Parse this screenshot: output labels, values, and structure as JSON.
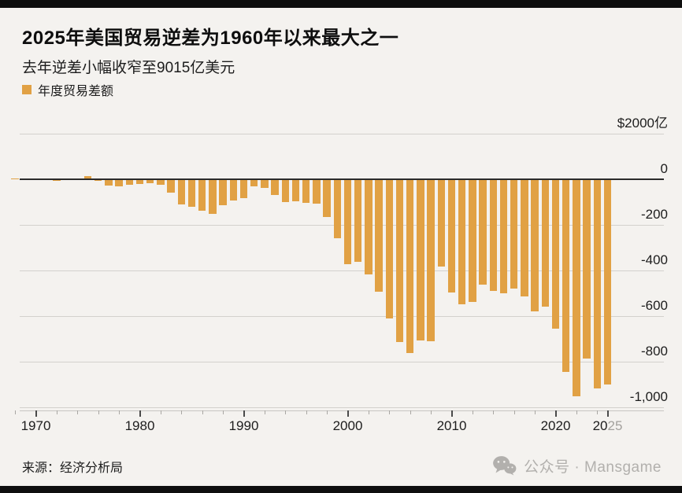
{
  "header": {
    "title": "2025年美国贸易逆差为1960年以来最大之一",
    "subtitle": "去年逆差小幅收窄至9015亿美元"
  },
  "legend": {
    "label": "年度贸易差额"
  },
  "footer": {
    "source": "来源：经济分析局",
    "watermark_icon": "wechat-icon",
    "watermark_text": "公众号 · Mansgame"
  },
  "colors": {
    "bar": "#E1A144",
    "background": "#F4F2EF",
    "grid": "#D3D1CD",
    "zero_line": "#2B2B2B",
    "axis_line": "#C8C6C2",
    "major_tick": "#4A4A4A",
    "minor_tick": "#A9A7A3",
    "text_dark": "#1D1D1D",
    "text_gray": "#A3A19D",
    "watermark": "#B2B0AD",
    "frame": "#0E0E0E"
  },
  "chart_data": {
    "type": "bar",
    "title": "2025年美国贸易逆差为1960年以来最大之一",
    "subtitle": "去年逆差小幅收窄至9015亿美元",
    "series_name": "年度贸易差额",
    "y_axis_top_label": "$2000亿",
    "ylim": [
      200,
      -1000
    ],
    "grid": "horizontal",
    "legend_position": "top-left",
    "y_ticks": [
      {
        "value": 200,
        "label": "$2000亿"
      },
      {
        "value": 0,
        "label": "0"
      },
      {
        "value": -200,
        "label": "-200"
      },
      {
        "value": -400,
        "label": "-400"
      },
      {
        "value": -600,
        "label": "-600"
      },
      {
        "value": -800,
        "label": "-800"
      },
      {
        "value": -1000,
        "label": "-1,000"
      }
    ],
    "x_ticks": [
      {
        "year": 1970,
        "dark": "1970",
        "gray": ""
      },
      {
        "year": 1980,
        "dark": "1980",
        "gray": ""
      },
      {
        "year": 1990,
        "dark": "1990",
        "gray": ""
      },
      {
        "year": 2000,
        "dark": "2000",
        "gray": ""
      },
      {
        "year": 2010,
        "dark": "2010",
        "gray": ""
      },
      {
        "year": 2020,
        "dark": "2020",
        "gray": ""
      },
      {
        "year": 2025,
        "dark": "20",
        "gray": "25"
      }
    ],
    "x_minor_tick_step": 2,
    "years": [
      1968,
      1969,
      1970,
      1971,
      1972,
      1973,
      1974,
      1975,
      1976,
      1977,
      1978,
      1979,
      1980,
      1981,
      1982,
      1983,
      1984,
      1985,
      1986,
      1987,
      1988,
      1989,
      1990,
      1991,
      1992,
      1993,
      1994,
      1995,
      1996,
      1997,
      1998,
      1999,
      2000,
      2001,
      2002,
      2003,
      2004,
      2005,
      2006,
      2007,
      2008,
      2009,
      2010,
      2011,
      2012,
      2013,
      2014,
      2015,
      2016,
      2017,
      2018,
      2019,
      2020,
      2021,
      2022,
      2023,
      2024,
      2025
    ],
    "values_billion_usd": [
      0.2,
      0.1,
      2.3,
      -1.3,
      -5.4,
      1.9,
      -4.3,
      12.4,
      -6.1,
      -27.2,
      -29.8,
      -24.6,
      -19.4,
      -16.2,
      -24.2,
      -57.8,
      -109.1,
      -121.9,
      -138.5,
      -151.7,
      -114.6,
      -93.1,
      -80.9,
      -31.1,
      -39.2,
      -70.3,
      -98.5,
      -96.4,
      -104.1,
      -108.3,
      -166.1,
      -258.6,
      -372.5,
      -361.5,
      -418.0,
      -493.9,
      -609.9,
      -714.2,
      -761.7,
      -705.4,
      -708.7,
      -383.8,
      -494.7,
      -548.6,
      -537.6,
      -461.9,
      -490.3,
      -500.4,
      -480.2,
      -513.8,
      -579.9,
      -559.7,
      -653.9,
      -845.0,
      -951.2,
      -784.9,
      -918.4,
      -901.5
    ]
  }
}
